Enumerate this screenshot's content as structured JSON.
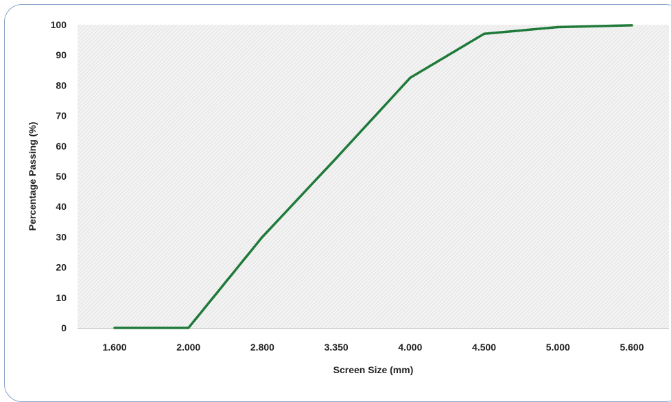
{
  "chart_data": {
    "type": "line",
    "title": "",
    "xlabel": "Screen Size (mm)",
    "ylabel": "Percentage Passing (%)",
    "categories": [
      "1.600",
      "2.000",
      "2.800",
      "3.350",
      "4.000",
      "4.500",
      "5.000",
      "5.600"
    ],
    "series": [
      {
        "values": [
          0,
          0,
          30,
          56,
          82.5,
          97,
          99.2,
          99.8
        ],
        "color": "#1f7a3a"
      }
    ],
    "ylim": [
      0,
      100
    ],
    "yticks": [
      0,
      10,
      20,
      30,
      40,
      50,
      60,
      70,
      80,
      90,
      100
    ],
    "grid": false,
    "plot_background": "hatched light gray"
  }
}
